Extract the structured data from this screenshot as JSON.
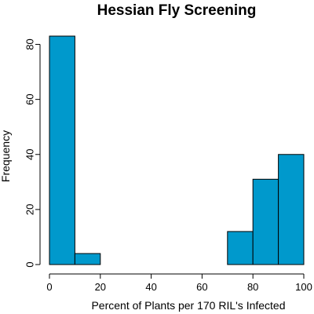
{
  "chart_data": {
    "type": "bar",
    "title": "Hessian Fly Screening",
    "xlabel": "Percent of Plants per 170 RIL's Infected",
    "ylabel": "Frequency",
    "bins": [
      {
        "x0": 0,
        "x1": 10,
        "value": 83
      },
      {
        "x0": 10,
        "x1": 20,
        "value": 4
      },
      {
        "x0": 70,
        "x1": 80,
        "value": 12
      },
      {
        "x0": 80,
        "x1": 90,
        "value": 31
      },
      {
        "x0": 90,
        "x1": 100,
        "value": 40
      }
    ],
    "xlim": [
      0,
      100
    ],
    "ylim": [
      0,
      83
    ],
    "xticks": [
      0,
      20,
      40,
      60,
      80,
      100
    ],
    "yticks": [
      0,
      20,
      40,
      60,
      80
    ],
    "grid": false,
    "bar_color": "#0099cc"
  }
}
